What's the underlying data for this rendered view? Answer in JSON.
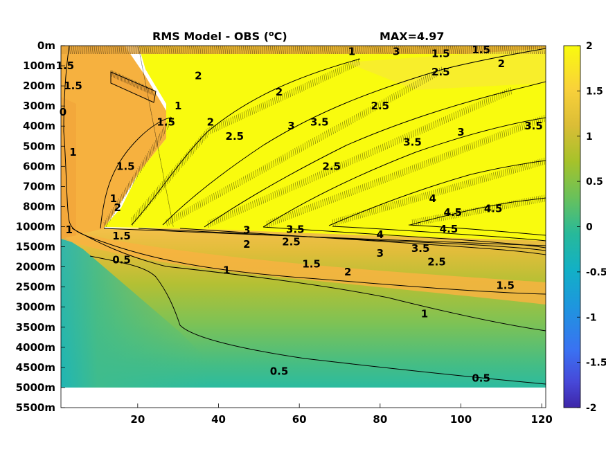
{
  "chart_data": {
    "type": "heatmap",
    "title_main": "RMS Model - OBS (",
    "title_sup": "o",
    "title_unit_end": "C)",
    "title_max": "MAX=4.97",
    "x_ticks": [
      "20",
      "40",
      "60",
      "80",
      "100",
      "120"
    ],
    "x_tick_values": [
      20,
      40,
      60,
      80,
      100,
      120
    ],
    "xlim": [
      1,
      121
    ],
    "y_ticks": [
      "0m",
      "100m",
      "200m",
      "300m",
      "400m",
      "500m",
      "600m",
      "700m",
      "800m",
      "1000m",
      "1500m",
      "2000m",
      "2500m",
      "3000m",
      "3500m",
      "4000m",
      "4500m",
      "5000m",
      "5500m"
    ],
    "y_tick_depths": [
      0,
      100,
      200,
      300,
      400,
      500,
      600,
      700,
      800,
      1000,
      1500,
      2000,
      2500,
      3000,
      3500,
      4000,
      4500,
      5000,
      5500
    ],
    "colorbar_ticks": [
      "2",
      "1.5",
      "1",
      "0.5",
      "0",
      "-0.5",
      "-1",
      "-1.5",
      "-2"
    ],
    "colorbar_values": [
      2,
      1.5,
      1,
      0.5,
      0,
      -0.5,
      -1,
      -1.5,
      -2
    ],
    "clim": [
      -2,
      2
    ],
    "colormap": "parula",
    "colors": {
      "low": "#3e26a8",
      "mid": "#1fb8c0",
      "high": "#f9fb0e",
      "orange": "#f8b540"
    },
    "contour_labels": [
      {
        "text": "1",
        "x": 3,
        "depth": 1080
      },
      {
        "text": "1.5",
        "x": 16,
        "depth": 1230
      },
      {
        "text": "0.5",
        "x": 16,
        "depth": 1830
      },
      {
        "text": "1",
        "x": 42,
        "depth": 2080
      },
      {
        "text": "1.5",
        "x": 63,
        "depth": 1930
      },
      {
        "text": "2",
        "x": 72,
        "depth": 2130
      },
      {
        "text": "2.5",
        "x": 94,
        "depth": 1880
      },
      {
        "text": "3.5",
        "x": 90,
        "depth": 1540
      },
      {
        "text": "3",
        "x": 80,
        "depth": 1660
      },
      {
        "text": "4",
        "x": 80,
        "depth": 1200
      },
      {
        "text": "4.5",
        "x": 97,
        "depth": 1060
      },
      {
        "text": "3",
        "x": 47,
        "depth": 1090
      },
      {
        "text": "3.5",
        "x": 59,
        "depth": 1070
      },
      {
        "text": "2",
        "x": 47,
        "depth": 1440
      },
      {
        "text": "2.5",
        "x": 58,
        "depth": 1380
      },
      {
        "text": "1.5",
        "x": 111,
        "depth": 2460
      },
      {
        "text": "1",
        "x": 91,
        "depth": 3170
      },
      {
        "text": "0.5",
        "x": 55,
        "depth": 4600
      },
      {
        "text": "0.5",
        "x": 105,
        "depth": 4770
      },
      {
        "text": "1.5",
        "x": 2,
        "depth": 100
      },
      {
        "text": "1.5",
        "x": 4,
        "depth": 200
      },
      {
        "text": "0",
        "x": 1.5,
        "depth": 330
      },
      {
        "text": "1",
        "x": 4,
        "depth": 530
      },
      {
        "text": "1.5",
        "x": 105,
        "depth": 20
      },
      {
        "text": "1.5",
        "x": 95,
        "depth": 40
      },
      {
        "text": "3",
        "x": 84,
        "depth": 30
      },
      {
        "text": "2",
        "x": 110,
        "depth": 90
      },
      {
        "text": "2.5",
        "x": 95,
        "depth": 130
      },
      {
        "text": "3.5",
        "x": 118,
        "depth": 400
      },
      {
        "text": "4.5",
        "x": 98,
        "depth": 860
      },
      {
        "text": "4.5",
        "x": 108,
        "depth": 820
      },
      {
        "text": "1",
        "x": 14,
        "depth": 760
      },
      {
        "text": "1.5",
        "x": 17,
        "depth": 600
      },
      {
        "text": "2",
        "x": 15,
        "depth": 810
      },
      {
        "text": "2",
        "x": 38,
        "depth": 380
      },
      {
        "text": "2.5",
        "x": 44,
        "depth": 450
      },
      {
        "text": "3",
        "x": 58,
        "depth": 400
      },
      {
        "text": "3.5",
        "x": 65,
        "depth": 380
      },
      {
        "text": "2.5",
        "x": 68,
        "depth": 600
      },
      {
        "text": "3.5",
        "x": 88,
        "depth": 480
      },
      {
        "text": "3",
        "x": 100,
        "depth": 430
      },
      {
        "text": "4",
        "x": 93,
        "depth": 760
      },
      {
        "text": "2",
        "x": 55,
        "depth": 230
      },
      {
        "text": "2.5",
        "x": 80,
        "depth": 300
      },
      {
        "text": "1",
        "x": 30,
        "depth": 300
      },
      {
        "text": "1.5",
        "x": 27,
        "depth": 380
      },
      {
        "text": "2",
        "x": 35,
        "depth": 150
      },
      {
        "text": "1",
        "x": 73,
        "depth": 30
      }
    ]
  }
}
